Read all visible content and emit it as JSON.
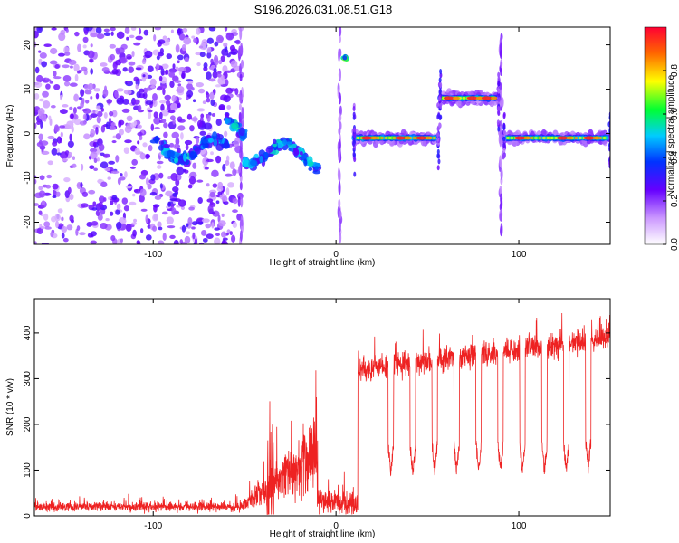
{
  "title": "S196.2026.031.08.51.G18",
  "chart_data": [
    {
      "type": "heatmap",
      "name": "spectrogram",
      "xlabel": "Height of straight line (km)",
      "ylabel": "Frequency (Hz)",
      "xlim": [
        -165,
        150
      ],
      "ylim": [
        -25,
        24
      ],
      "xticks": [
        "-100",
        "0",
        "100"
      ],
      "xtick_values": [
        -100,
        0,
        100
      ],
      "yticks": [
        "20",
        "10",
        "0",
        "-10",
        "-20"
      ],
      "ytick_values": [
        20,
        10,
        0,
        -10,
        -20
      ],
      "colorbar": {
        "label": "Normalized spectral amplitude",
        "range": [
          0.0,
          1.0
        ],
        "ticks": [
          "0.0",
          "0.2",
          "0.4",
          "0.6",
          "0.8"
        ],
        "tick_values": [
          0.0,
          0.2,
          0.4,
          0.6,
          0.8
        ]
      },
      "features": [
        {
          "name": "noise-region",
          "x_range": [
            -165,
            -52
          ],
          "freq_range": [
            -25,
            24
          ],
          "amplitude": 0.15
        },
        {
          "name": "drifting-signal",
          "x_range": [
            -100,
            -10
          ],
          "freq_center": [
            -3,
            -6
          ],
          "amplitude": 0.45
        },
        {
          "name": "burst-high",
          "x_range": [
            2,
            8
          ],
          "freq_center": 17,
          "amplitude": 0.5
        },
        {
          "name": "tone-a",
          "x_range": [
            10,
            56
          ],
          "freq_center": -1,
          "amplitude": 0.95
        },
        {
          "name": "tone-b",
          "x_range": [
            57,
            89
          ],
          "freq_center": 8,
          "amplitude": 0.95
        },
        {
          "name": "tone-c",
          "x_range": [
            92,
            150
          ],
          "freq_center": -1,
          "amplitude": 0.95
        }
      ]
    },
    {
      "type": "line",
      "name": "snr",
      "xlabel": "Height of straight line (km)",
      "ylabel": "SNR (10 * v/v)",
      "xlim": [
        -165,
        150
      ],
      "ylim": [
        0,
        475
      ],
      "xticks": [
        "-100",
        "0",
        "100"
      ],
      "xtick_values": [
        -100,
        0,
        100
      ],
      "yticks": [
        "0",
        "100",
        "200",
        "300",
        "400"
      ],
      "ytick_values": [
        0,
        100,
        200,
        300,
        400
      ],
      "series_color": "#ee2222",
      "segments": [
        {
          "x_range": [
            -165,
            -52
          ],
          "level": 20,
          "noise": 15
        },
        {
          "x_range": [
            -52,
            -10
          ],
          "level": 80,
          "noise": 120
        },
        {
          "x_range": [
            -10,
            12
          ],
          "level": 30,
          "noise": 40
        },
        {
          "x_range": [
            12,
            150
          ],
          "level": 345,
          "noise": 40
        }
      ],
      "dips": [
        {
          "x": 30,
          "to": 80
        },
        {
          "x": 42,
          "to": 80
        },
        {
          "x": 54,
          "to": 85
        },
        {
          "x": 66,
          "to": 85
        },
        {
          "x": 78,
          "to": 85
        },
        {
          "x": 90,
          "to": 85
        },
        {
          "x": 102,
          "to": 85
        },
        {
          "x": 114,
          "to": 85
        },
        {
          "x": 126,
          "to": 85
        },
        {
          "x": 138,
          "to": 90
        }
      ]
    }
  ]
}
